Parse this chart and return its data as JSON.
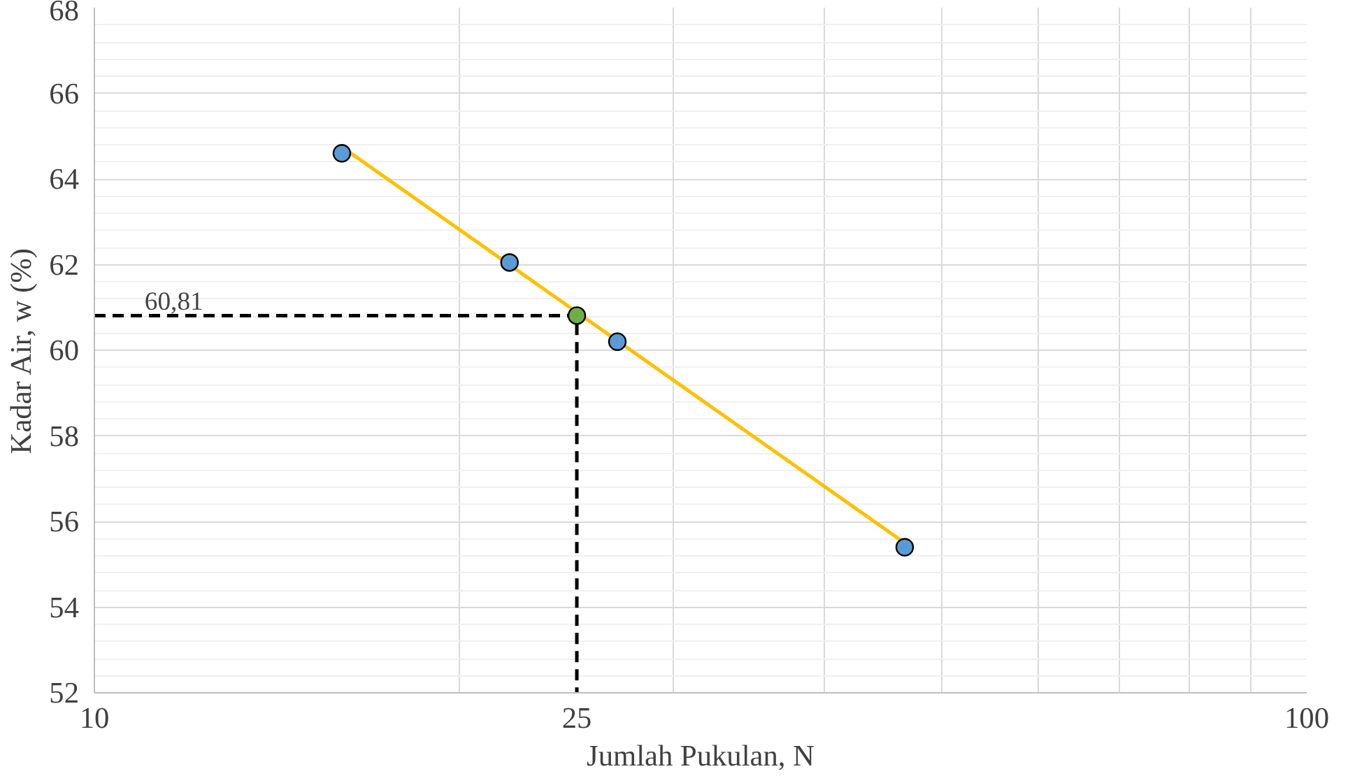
{
  "chart_data": {
    "type": "scatter",
    "xlabel": "Jumlah Pukulan, N",
    "ylabel": "Kadar Air, w (%)",
    "log": "x",
    "grid": true,
    "xlim": [
      10,
      100
    ],
    "xticks": [
      10,
      25,
      100
    ],
    "ylim": [
      52,
      68
    ],
    "yticks": [
      52,
      54,
      56,
      58,
      60,
      62,
      64,
      66,
      68
    ],
    "series": [
      {
        "type": "line",
        "color": "#000000",
        "line_style": "dashed",
        "marker": "none",
        "x": [
          10,
          25,
          25
        ],
        "values": [
          60.81,
          60.81,
          52
        ]
      },
      {
        "type": "line",
        "color": "#ffc000",
        "line_style": "solid",
        "marker": "none",
        "x": [
          16,
          46.6
        ],
        "values": [
          64.75,
          55.5
        ]
      },
      {
        "color": "#5b9bd5",
        "marker": "circle",
        "x": [
          16,
          22,
          27,
          46.6
        ],
        "values": [
          64.6,
          62.05,
          60.2,
          55.4
        ]
      },
      {
        "color": "#70ad47",
        "marker": "circle",
        "x": [
          25
        ],
        "values": [
          60.81
        ]
      }
    ],
    "annotations": [
      {
        "text": "60,81",
        "x": 11,
        "y": 60.81
      }
    ]
  }
}
